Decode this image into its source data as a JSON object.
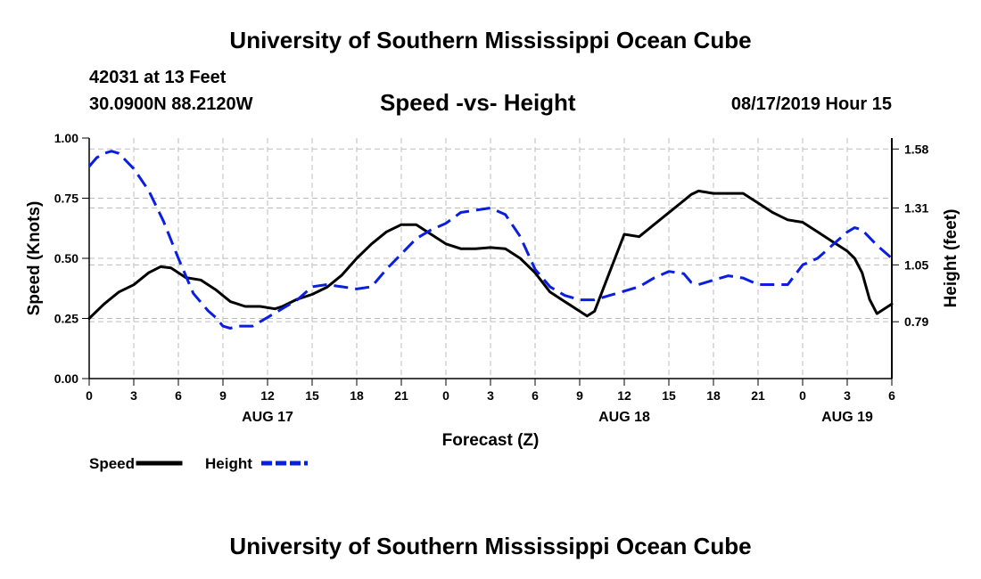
{
  "header": {
    "title": "University of Southern Mississippi Ocean Cube",
    "station": "42031 at 13 Feet",
    "coords": "30.0900N 88.2120W",
    "datetime": "08/17/2019 Hour 15",
    "footer_title": "University of Southern Mississippi Ocean Cube"
  },
  "chart_data": {
    "type": "line",
    "title": "Speed -vs- Height",
    "xlabel": "Forecast (Z)",
    "ylabel": "Speed (Knots)",
    "y2label": "Height (feet)",
    "x_hours_range": [
      0,
      54
    ],
    "x_ticks": [
      {
        "hour": 0,
        "label": "0"
      },
      {
        "hour": 3,
        "label": "3"
      },
      {
        "hour": 6,
        "label": "6"
      },
      {
        "hour": 9,
        "label": "9"
      },
      {
        "hour": 12,
        "label": "12"
      },
      {
        "hour": 15,
        "label": "15"
      },
      {
        "hour": 18,
        "label": "18"
      },
      {
        "hour": 21,
        "label": "21"
      },
      {
        "hour": 24,
        "label": "0"
      },
      {
        "hour": 27,
        "label": "3"
      },
      {
        "hour": 30,
        "label": "6"
      },
      {
        "hour": 33,
        "label": "9"
      },
      {
        "hour": 36,
        "label": "12"
      },
      {
        "hour": 39,
        "label": "15"
      },
      {
        "hour": 42,
        "label": "18"
      },
      {
        "hour": 45,
        "label": "21"
      },
      {
        "hour": 48,
        "label": "0"
      },
      {
        "hour": 51,
        "label": "3"
      },
      {
        "hour": 54,
        "label": "6"
      }
    ],
    "date_labels": [
      {
        "hour": 12,
        "label": "AUG 17"
      },
      {
        "hour": 36,
        "label": "AUG 18"
      },
      {
        "hour": 51,
        "label": "AUG 19"
      }
    ],
    "ylim": [
      0,
      1.0
    ],
    "y_ticks": [
      "0.00",
      "0.25",
      "0.50",
      "0.75",
      "1.00"
    ],
    "y2lim": [
      0.53,
      1.63
    ],
    "y2_ticks": [
      "0.79",
      "1.05",
      "1.31",
      "1.58"
    ],
    "series": [
      {
        "name": "Speed",
        "axis": "left",
        "color": "#000000",
        "dash": "solid",
        "x": [
          0,
          1,
          2,
          3,
          4,
          4.8,
          5.5,
          6.5,
          7.5,
          8.5,
          9.5,
          10.5,
          11.5,
          12.5,
          13,
          14,
          15,
          16,
          17,
          18,
          19,
          20,
          21,
          22,
          23,
          24,
          25,
          26,
          27,
          28,
          29,
          30,
          31,
          32,
          33,
          33.5,
          34,
          35,
          36,
          37,
          38,
          39,
          40,
          40.5,
          41,
          42,
          43,
          44,
          45,
          46,
          47,
          48,
          49,
          50,
          50.5,
          51,
          51.5,
          52,
          52.5,
          53,
          54
        ],
        "values": [
          0.25,
          0.31,
          0.36,
          0.39,
          0.44,
          0.465,
          0.46,
          0.42,
          0.41,
          0.37,
          0.32,
          0.3,
          0.3,
          0.29,
          0.3,
          0.33,
          0.35,
          0.38,
          0.43,
          0.5,
          0.56,
          0.61,
          0.64,
          0.64,
          0.6,
          0.56,
          0.54,
          0.54,
          0.545,
          0.54,
          0.5,
          0.44,
          0.36,
          0.32,
          0.28,
          0.26,
          0.28,
          0.44,
          0.6,
          0.59,
          0.64,
          0.69,
          0.74,
          0.765,
          0.78,
          0.77,
          0.77,
          0.77,
          0.73,
          0.69,
          0.66,
          0.65,
          0.61,
          0.57,
          0.55,
          0.53,
          0.5,
          0.44,
          0.33,
          0.27,
          0.31
        ]
      },
      {
        "name": "Height",
        "axis": "right",
        "color": "#0a1ee0",
        "dash": "dashed",
        "x": [
          0,
          0.5,
          1,
          1.5,
          2,
          3,
          4,
          5,
          6,
          7,
          8,
          8.5,
          9,
          9.5,
          10,
          11,
          12,
          13,
          14,
          15,
          16,
          17,
          18,
          19,
          20,
          21,
          22,
          23,
          24,
          25,
          26,
          27,
          28,
          29,
          30,
          31,
          32,
          33,
          34,
          35,
          36,
          37,
          38,
          39,
          40,
          40.5,
          41,
          42,
          43,
          44,
          45,
          46,
          47,
          48,
          49,
          50,
          51,
          51.5,
          52,
          53,
          54
        ],
        "values": [
          1.5,
          1.54,
          1.56,
          1.57,
          1.56,
          1.49,
          1.39,
          1.25,
          1.08,
          0.92,
          0.84,
          0.81,
          0.77,
          0.76,
          0.77,
          0.77,
          0.81,
          0.85,
          0.89,
          0.95,
          0.96,
          0.95,
          0.94,
          0.95,
          1.03,
          1.1,
          1.17,
          1.21,
          1.24,
          1.29,
          1.3,
          1.31,
          1.28,
          1.18,
          1.03,
          0.95,
          0.91,
          0.89,
          0.89,
          0.91,
          0.93,
          0.95,
          0.99,
          1.02,
          1.01,
          0.97,
          0.96,
          0.98,
          1.0,
          0.99,
          0.96,
          0.96,
          0.96,
          1.05,
          1.08,
          1.14,
          1.2,
          1.22,
          1.21,
          1.14,
          1.08
        ]
      }
    ],
    "legend": [
      {
        "label": "Speed",
        "color": "#000000",
        "dash": "solid"
      },
      {
        "label": "Height",
        "color": "#0a1ee0",
        "dash": "dashed"
      }
    ]
  }
}
